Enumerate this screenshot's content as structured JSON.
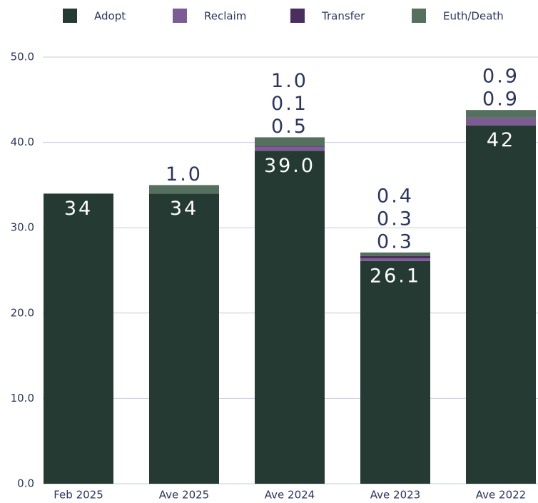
{
  "chart_data": {
    "type": "stacked-bar",
    "categories": [
      "Feb 2025",
      "Ave 2025",
      "Ave 2024",
      "Ave 2023",
      "Ave 2022"
    ],
    "series": [
      {
        "name": "Adopt",
        "color": "#243a32",
        "values": [
          34,
          34,
          39,
          26.1,
          42
        ],
        "value_labels": [
          "34",
          "34",
          "39.0",
          "26.1",
          "42"
        ]
      },
      {
        "name": "Reclaim",
        "color": "#7b5c93",
        "values": [
          null,
          null,
          0.5,
          0.3,
          0.9
        ],
        "value_labels": [
          null,
          null,
          "0.5",
          "0.3",
          "0.9"
        ]
      },
      {
        "name": "Transfer",
        "color": "#4a2e5e",
        "values": [
          null,
          null,
          0.1,
          0.3,
          null
        ],
        "value_labels": [
          null,
          null,
          "0.1",
          "0.3",
          null
        ]
      },
      {
        "name": "Euth/Death",
        "color": "#55705f",
        "values": [
          null,
          1,
          1,
          0.4,
          0.9
        ],
        "value_labels": [
          null,
          "1.0",
          "1.0",
          "0.4",
          "0.9"
        ]
      }
    ],
    "ylim": [
      0,
      50
    ],
    "yticks": [
      {
        "value": 0,
        "label": "0.0"
      },
      {
        "value": 10,
        "label": "10.0"
      },
      {
        "value": 20,
        "label": "20.0"
      },
      {
        "value": 30,
        "label": "30.0"
      },
      {
        "value": 40,
        "label": "40.0"
      },
      {
        "value": 50,
        "label": "50.0"
      }
    ],
    "grid": true,
    "legend": "top"
  }
}
